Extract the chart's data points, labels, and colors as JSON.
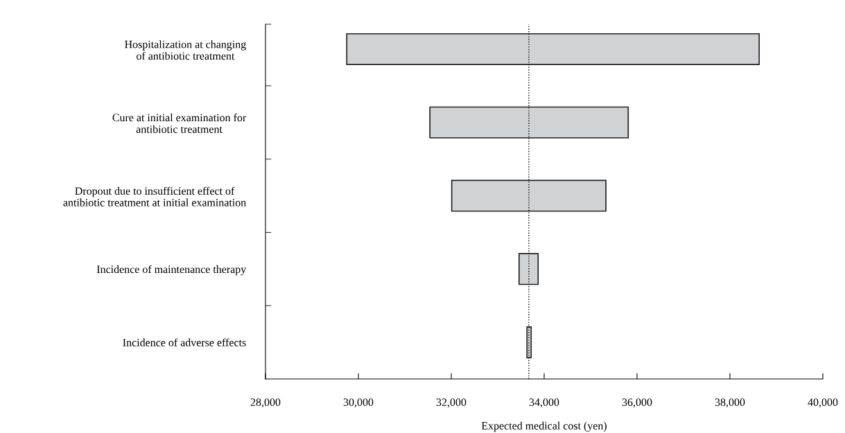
{
  "chart_data": {
    "type": "bar",
    "orientation": "horizontal",
    "xlabel": "Expected medical cost (yen)",
    "categories": [
      "Hospitalization at changing\nof antibiotic treatment",
      "Cure at initial examination for\nantibiotic treatment",
      "Dropout due to insufficient effect of\nantibiotic treatment at initial examination",
      "Incidence of maintenance therapy",
      "Incidence of adverse effects"
    ],
    "base": [
      29750,
      31540,
      32010,
      33460,
      33630
    ],
    "values": [
      8880,
      4270,
      3320,
      410,
      90
    ],
    "color": "#d1d2d4",
    "xlim": [
      28000,
      40000
    ],
    "xticks": [
      {
        "value": 28000,
        "label": "28,000"
      },
      {
        "value": 30000,
        "label": "30,000"
      },
      {
        "value": 32000,
        "label": "32,000"
      },
      {
        "value": 34000,
        "label": "34,000"
      },
      {
        "value": 36000,
        "label": "36,000"
      },
      {
        "value": 38000,
        "label": "38,000"
      },
      {
        "value": 40000,
        "label": "40,000"
      }
    ],
    "ref_lines": [
      {
        "axis": "x",
        "value": 33670,
        "line_style": "dotted",
        "color": "#000000"
      }
    ],
    "grid": false,
    "legend": false
  }
}
